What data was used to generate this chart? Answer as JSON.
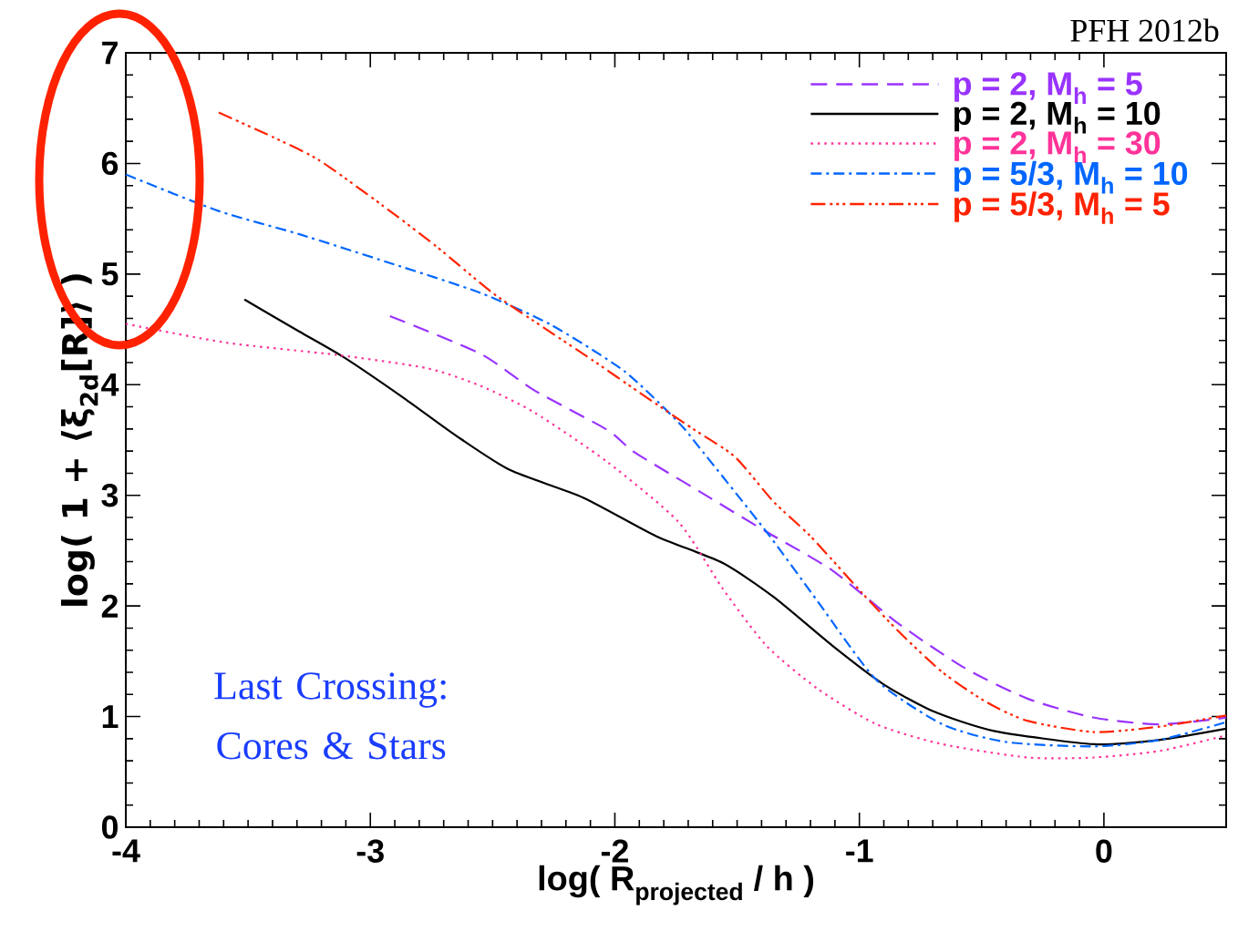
{
  "chart_data": {
    "type": "line",
    "xlabel": "\\text{log( R}_{\\text{projected}}\\text{ / h )}",
    "ylabel": "log( 1 + ⟨ξ$_{2d}$[R]⟩ )",
    "xlim": [
      -4,
      0.5
    ],
    "ylim": [
      0,
      7
    ],
    "xticks": [
      -4,
      -3,
      -2,
      -1,
      0
    ],
    "yticks": [
      0,
      1,
      2,
      3,
      4,
      5,
      6,
      7
    ],
    "legend": "top right",
    "grid": false,
    "marker": "none",
    "annotations": [
      "PFH 2012b",
      "Last Crossing: Cores & Stars"
    ],
    "series": [
      {
        "name": "p = 2, M$_{h}$ = 5",
        "color": "#9933ff",
        "line_style": "dashed",
        "x": [
          -2.92,
          -2.55,
          -2.33,
          -2.03,
          -1.92,
          -1.65,
          -1.38,
          -1.11,
          -0.84,
          -0.57,
          -0.31,
          -0.04,
          0.23,
          0.5
        ],
        "values": [
          4.62,
          4.28,
          3.95,
          3.59,
          3.39,
          3.03,
          2.67,
          2.32,
          1.84,
          1.44,
          1.16,
          0.99,
          0.93,
          0.99
        ]
      },
      {
        "name": "p = 2, M$_{h}$ = 10",
        "color": "#000000",
        "line_style": "solid",
        "x": [
          -3.515,
          -3.29,
          -3.11,
          -2.87,
          -2.65,
          -2.43,
          -2.13,
          -1.83,
          -1.56,
          -1.35,
          -1.11,
          -0.9,
          -0.7,
          -0.45,
          -0.04,
          0.23,
          0.5
        ],
        "values": [
          4.77,
          4.48,
          4.25,
          3.89,
          3.54,
          3.23,
          2.98,
          2.63,
          2.39,
          2.08,
          1.64,
          1.29,
          1.05,
          0.87,
          0.75,
          0.79,
          0.89
        ]
      },
      {
        "name": "p = 2, M$_{h}$ = 30",
        "color": "#ff3399",
        "line_style": "dotted",
        "x": [
          -4,
          -3.59,
          -3.14,
          -2.77,
          -2.55,
          -2.33,
          -2.03,
          -1.74,
          -1.56,
          -1.38,
          -1.17,
          -0.93,
          -0.66,
          -0.31,
          -0.04,
          0.23,
          0.5
        ],
        "values": [
          4.55,
          4.38,
          4.27,
          4.15,
          3.99,
          3.75,
          3.3,
          2.76,
          2.16,
          1.64,
          1.25,
          0.93,
          0.75,
          0.63,
          0.63,
          0.69,
          0.83
        ]
      },
      {
        "name": "p = 5/3, M$_{h}$ = 10",
        "color": "#0066ff",
        "line_style": "dashdot",
        "x": [
          -4,
          -3.62,
          -3.29,
          -2.92,
          -2.55,
          -2.26,
          -1.96,
          -1.74,
          -1.65,
          -1.38,
          -1.17,
          -0.93,
          -0.66,
          -0.4,
          -0.04,
          0.23,
          0.5
        ],
        "values": [
          5.9,
          5.57,
          5.36,
          5.1,
          4.83,
          4.54,
          4.12,
          3.66,
          3.42,
          2.67,
          2.04,
          1.33,
          0.93,
          0.77,
          0.73,
          0.79,
          0.95
        ]
      },
      {
        "name": "p = 5/3, M$_{h}$ = 5",
        "color": "#ff2200",
        "line_style": "dashdotdotdot",
        "x": [
          -3.62,
          -3.4,
          -3.21,
          -2.95,
          -2.73,
          -2.5,
          -2.28,
          -2.09,
          -1.9,
          -1.68,
          -1.51,
          -1.35,
          -1.2,
          -0.99,
          -0.84,
          -0.66,
          -0.48,
          -0.31,
          -0.04,
          0.23,
          0.5
        ],
        "values": [
          6.46,
          6.24,
          6.03,
          5.62,
          5.25,
          4.83,
          4.5,
          4.22,
          3.93,
          3.6,
          3.35,
          2.94,
          2.63,
          2.12,
          1.77,
          1.4,
          1.13,
          0.96,
          0.86,
          0.91,
          1.01
        ]
      }
    ]
  }
}
